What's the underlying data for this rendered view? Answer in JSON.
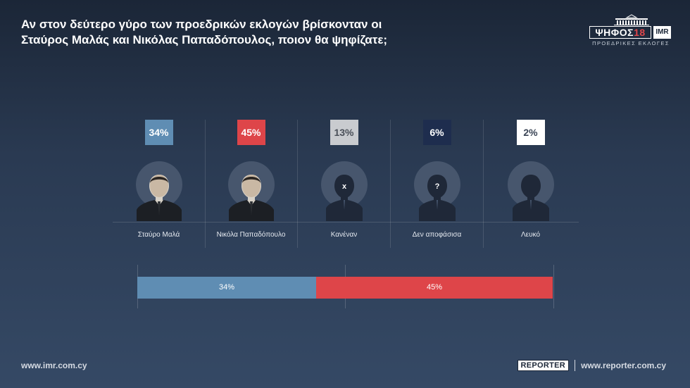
{
  "title": {
    "line1": "Αν στον δεύτερο γύρο των προεδρικών εκλογών βρίσκονταν οι",
    "line2": "Σταύρος Μαλάς και Νικόλας Παπαδόπουλος, ποιον θα ψηφίζατε;"
  },
  "brand": {
    "word": "ΨΗΦΟΣ",
    "year": "18",
    "imr": "IMR",
    "subtitle": "ΠΡΟΕΔΡΙΚΕΣ ΕΚΛΟΓΕΣ"
  },
  "colors": {
    "malas": "#5f8db3",
    "papadopoulos": "#de4549",
    "none": "#c9cbcf",
    "undecided": "#1e2d4e",
    "blank": "#ffffff"
  },
  "chart_data": {
    "type": "bar",
    "categories": [
      "Σταύρο Μαλά",
      "Νικόλα Παπαδόπουλο",
      "Κανέναν",
      "Δεν αποφάσισα",
      "Λευκό"
    ],
    "values": [
      34,
      45,
      13,
      6,
      2
    ],
    "value_labels": [
      "34%",
      "45%",
      "13%",
      "6%",
      "2%"
    ],
    "avatar_marks": [
      "photo",
      "photo",
      "x",
      "?",
      ""
    ],
    "stacked_bar": {
      "segments": [
        {
          "value": 34,
          "label": "34%",
          "color": "#5f8db3"
        },
        {
          "value": 45,
          "label": "45%",
          "color": "#de4549"
        }
      ],
      "xlim": [
        0,
        79
      ]
    }
  },
  "footer": {
    "left_url": "www.imr.com.cy",
    "reporter_logo": "REPORTER",
    "right_url": "www.reporter.com.cy"
  }
}
